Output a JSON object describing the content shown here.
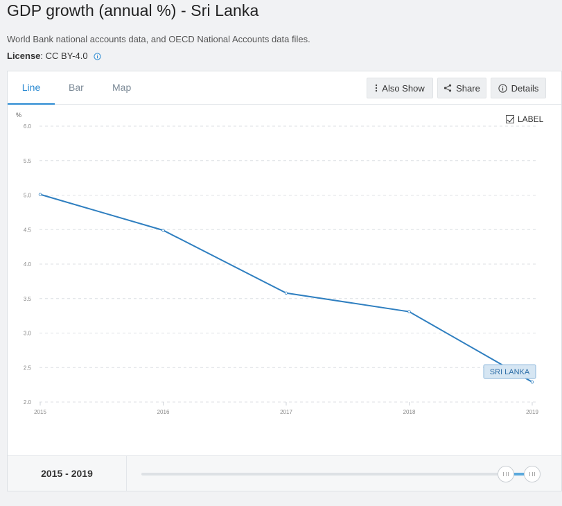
{
  "header": {
    "title": "GDP growth (annual %) - Sri Lanka",
    "source": "World Bank national accounts data, and OECD National Accounts data files.",
    "license_label": "License",
    "license_value": " : CC BY-4.0"
  },
  "tabs": [
    {
      "label": "Line",
      "active": true
    },
    {
      "label": "Bar",
      "active": false
    },
    {
      "label": "Map",
      "active": false
    }
  ],
  "toolbar": {
    "also_show": "Also Show",
    "share": "Share",
    "details": "Details"
  },
  "label_toggle": {
    "text": "LABEL",
    "checked": true
  },
  "range": {
    "start": "2015",
    "end": "2019",
    "separator": " - "
  },
  "colors": {
    "accent": "#2a8ad2",
    "line": "#2f7fc0",
    "label_bg": "#d6e6f3",
    "label_border": "#8fb8db"
  },
  "chart_data": {
    "type": "line",
    "unit_label": "%",
    "x": [
      "2015",
      "2016",
      "2017",
      "2018",
      "2019"
    ],
    "series": [
      {
        "name": "SRI LANKA",
        "values": [
          5.01,
          4.49,
          3.58,
          3.31,
          2.29
        ]
      }
    ],
    "ylim": [
      2.0,
      6.0
    ],
    "yticks": [
      "2.0",
      "2.5",
      "3.0",
      "3.5",
      "4.0",
      "4.5",
      "5.0",
      "5.5",
      "6.0"
    ],
    "grid": true
  }
}
